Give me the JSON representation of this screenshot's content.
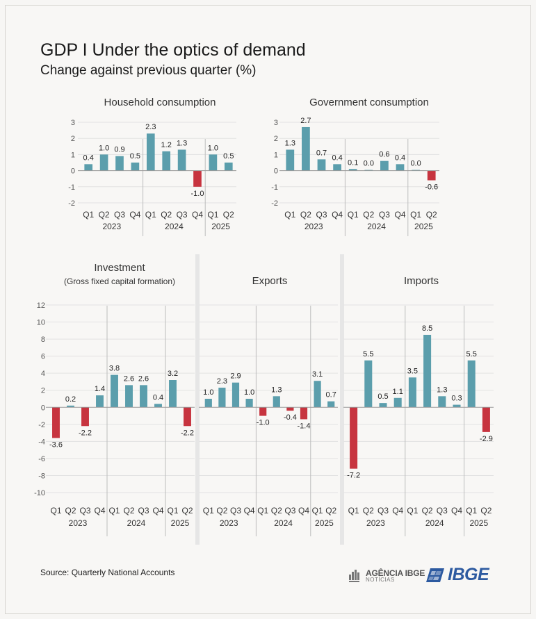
{
  "header": {
    "title": "GDP I Under the optics of demand",
    "subtitle": "Change against previous quarter (%)"
  },
  "footer": {
    "source": "Source: Quarterly National Accounts",
    "agencia_logo": "AGÊNCIA IBGE",
    "agencia_sub": "NOTÍCIAS",
    "ibge_logo": "IBGE"
  },
  "colors": {
    "positive": "#5b9eac",
    "negative": "#c7343f",
    "axis": "#999999",
    "grid": "#e2e2e2",
    "divider": "#e6e6e6"
  },
  "chart_data": [
    {
      "type": "bar",
      "title": "Household consumption",
      "quarters": [
        "Q1",
        "Q2",
        "Q3",
        "Q4",
        "Q1",
        "Q2",
        "Q3",
        "Q4",
        "Q1",
        "Q2"
      ],
      "years": [
        {
          "label": "2023",
          "count": 4
        },
        {
          "label": "2024",
          "count": 4
        },
        {
          "label": "2025",
          "count": 2
        }
      ],
      "values": [
        0.4,
        1.0,
        0.9,
        0.5,
        2.3,
        1.2,
        1.3,
        -1.0,
        1.0,
        0.5
      ],
      "labels": [
        "0.4",
        "1.0",
        "0.9",
        "0.5",
        "2.3",
        "1.2",
        "1.3",
        "-1.0",
        "1.0",
        "0.5"
      ],
      "ylim": [
        -2,
        3
      ],
      "yticks": [
        3,
        2,
        1,
        0,
        -1,
        -2
      ]
    },
    {
      "type": "bar",
      "title": "Government consumption",
      "quarters": [
        "Q1",
        "Q2",
        "Q3",
        "Q4",
        "Q1",
        "Q2",
        "Q3",
        "Q4",
        "Q1",
        "Q2"
      ],
      "years": [
        {
          "label": "2023",
          "count": 4
        },
        {
          "label": "2024",
          "count": 4
        },
        {
          "label": "2025",
          "count": 2
        }
      ],
      "values": [
        1.3,
        2.7,
        0.7,
        0.4,
        0.1,
        0.0,
        0.6,
        0.4,
        0.0,
        -0.6
      ],
      "labels": [
        "1.3",
        "2.7",
        "0.7",
        "0.4",
        "0.1",
        "0.0",
        "0.6",
        "0.4",
        "0.0",
        "-0.6"
      ],
      "ylim": [
        -2,
        3
      ],
      "yticks": [
        3,
        2,
        1,
        0,
        -1,
        -2
      ]
    },
    {
      "type": "bar",
      "title": "Investment",
      "subtitle": "(Gross fixed capital formation)",
      "quarters": [
        "Q1",
        "Q2",
        "Q3",
        "Q4",
        "Q1",
        "Q2",
        "Q3",
        "Q4",
        "Q1",
        "Q2"
      ],
      "years": [
        {
          "label": "2023",
          "count": 4
        },
        {
          "label": "2024",
          "count": 4
        },
        {
          "label": "2025",
          "count": 2
        }
      ],
      "values": [
        -3.6,
        0.2,
        -2.2,
        1.4,
        3.8,
        2.6,
        2.6,
        0.4,
        3.2,
        -2.2
      ],
      "labels": [
        "-3.6",
        "0.2",
        "-2.2",
        "1.4",
        "3.8",
        "2.6",
        "2.6",
        "0.4",
        "3.2",
        "-2.2"
      ],
      "ylim": [
        -10,
        12
      ],
      "yticks": [
        12,
        10,
        8,
        6,
        4,
        2,
        0,
        -2,
        -4,
        -6,
        -8,
        -10
      ]
    },
    {
      "type": "bar",
      "title": "Exports",
      "quarters": [
        "Q1",
        "Q2",
        "Q3",
        "Q4",
        "Q1",
        "Q2",
        "Q3",
        "Q4",
        "Q1",
        "Q2"
      ],
      "years": [
        {
          "label": "2023",
          "count": 4
        },
        {
          "label": "2024",
          "count": 4
        },
        {
          "label": "2025",
          "count": 2
        }
      ],
      "values": [
        1.0,
        2.3,
        2.9,
        1.0,
        -1.0,
        1.3,
        -0.4,
        -1.4,
        3.1,
        0.7
      ],
      "labels": [
        "1.0",
        "2.3",
        "2.9",
        "1.0",
        "-1.0",
        "1.3",
        "-0.4",
        "-1.4",
        "3.1",
        "0.7"
      ],
      "ylim": [
        -10,
        12
      ]
    },
    {
      "type": "bar",
      "title": "Imports",
      "quarters": [
        "Q1",
        "Q2",
        "Q3",
        "Q4",
        "Q1",
        "Q2",
        "Q3",
        "Q4",
        "Q1",
        "Q2"
      ],
      "years": [
        {
          "label": "2023",
          "count": 4
        },
        {
          "label": "2024",
          "count": 4
        },
        {
          "label": "2025",
          "count": 2
        }
      ],
      "values": [
        -7.2,
        5.5,
        0.5,
        1.1,
        3.5,
        8.5,
        1.3,
        0.3,
        5.5,
        -2.9
      ],
      "labels": [
        "-7.2",
        "5.5",
        "0.5",
        "1.1",
        "3.5",
        "8.5",
        "1.3",
        "0.3",
        "5.5",
        "-2.9"
      ],
      "ylim": [
        -10,
        12
      ]
    }
  ]
}
